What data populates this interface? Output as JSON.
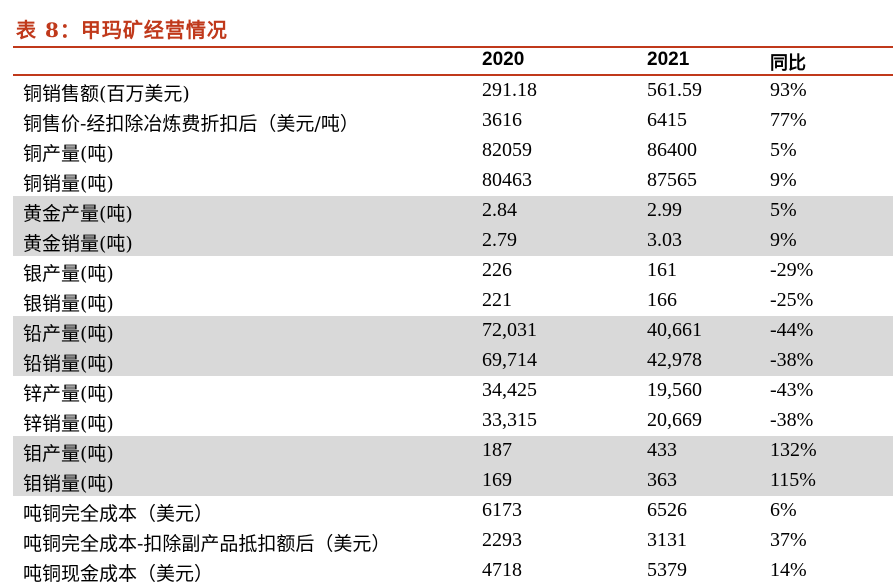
{
  "title": "表 8：甲玛矿经营情况",
  "header": {
    "label": "",
    "col1": "2020",
    "col2": "2021",
    "col3": "同比"
  },
  "rows": [
    {
      "label": "铜销售额(百万美元)",
      "v2020": "291.18",
      "v2021": "561.59",
      "yoy": "93%",
      "shaded": false
    },
    {
      "label": "铜售价-经扣除冶炼费折扣后（美元/吨）",
      "v2020": "3616",
      "v2021": "6415",
      "yoy": "77%",
      "shaded": false
    },
    {
      "label": "铜产量(吨)",
      "v2020": "82059",
      "v2021": "86400",
      "yoy": "5%",
      "shaded": false
    },
    {
      "label": "铜销量(吨)",
      "v2020": "80463",
      "v2021": "87565",
      "yoy": "9%",
      "shaded": false
    },
    {
      "label": "黄金产量(吨)",
      "v2020": "2.84",
      "v2021": "2.99",
      "yoy": "5%",
      "shaded": true
    },
    {
      "label": "黄金销量(吨)",
      "v2020": "2.79",
      "v2021": "3.03",
      "yoy": "9%",
      "shaded": true
    },
    {
      "label": "银产量(吨)",
      "v2020": "226",
      "v2021": "161",
      "yoy": "-29%",
      "shaded": false
    },
    {
      "label": "银销量(吨)",
      "v2020": "221",
      "v2021": "166",
      "yoy": "-25%",
      "shaded": false
    },
    {
      "label": "铅产量(吨)",
      "v2020": "72,031",
      "v2021": "40,661",
      "yoy": "-44%",
      "shaded": true
    },
    {
      "label": "铅销量(吨)",
      "v2020": "69,714",
      "v2021": "42,978",
      "yoy": "-38%",
      "shaded": true
    },
    {
      "label": "锌产量(吨)",
      "v2020": "34,425",
      "v2021": "19,560",
      "yoy": "-43%",
      "shaded": false
    },
    {
      "label": "锌销量(吨)",
      "v2020": "33,315",
      "v2021": "20,669",
      "yoy": "-38%",
      "shaded": false
    },
    {
      "label": "钼产量(吨)",
      "v2020": "187",
      "v2021": "433",
      "yoy": "132%",
      "shaded": true
    },
    {
      "label": "钼销量(吨)",
      "v2020": "169",
      "v2021": "363",
      "yoy": "115%",
      "shaded": true
    },
    {
      "label": "吨铜完全成本（美元）",
      "v2020": "6173",
      "v2021": "6526",
      "yoy": "6%",
      "shaded": false
    },
    {
      "label": "吨铜完全成本-扣除副产品抵扣额后（美元）",
      "v2020": "2293",
      "v2021": "3131",
      "yoy": "37%",
      "shaded": false
    },
    {
      "label": "吨铜现金成本（美元）",
      "v2020": "4718",
      "v2021": "5379",
      "yoy": "14%",
      "shaded": false
    }
  ],
  "colors": {
    "accent": "#c0391b",
    "shade": "#d9d9d9"
  }
}
